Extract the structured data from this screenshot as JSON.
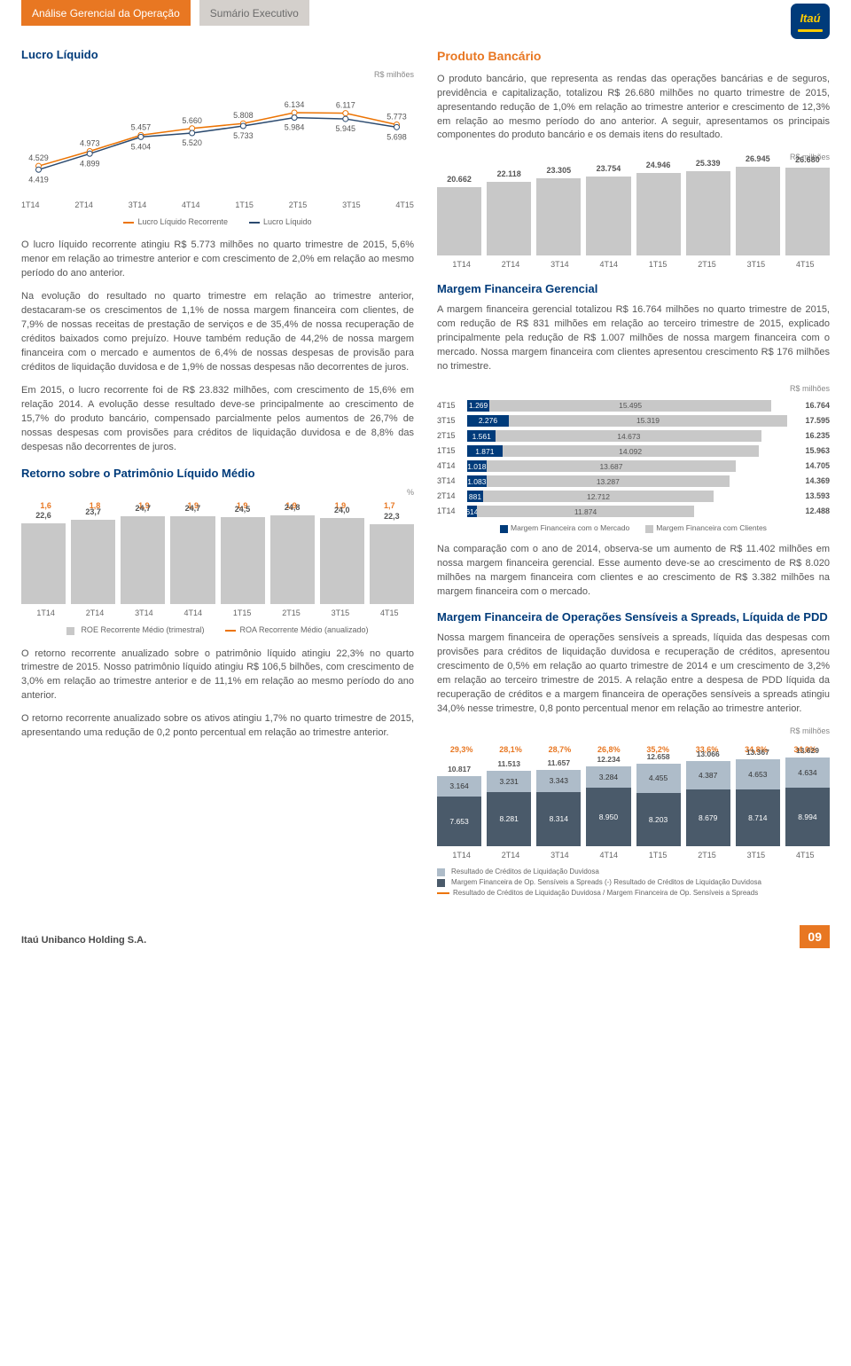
{
  "header": {
    "tag1": "Análise Gerencial da Operação",
    "tag2": "Sumário Executivo",
    "logo_text": "Itaú"
  },
  "colors": {
    "orange": "#e87722",
    "navy": "#003b7a",
    "orange_line": "#ec7404",
    "navy_line": "#2b4a6f",
    "gray_bar": "#c8c8c8",
    "steel_light": "#aebcc9",
    "steel_dark": "#4a5a6a"
  },
  "lucro_liquido": {
    "title": "Lucro Líquido",
    "unit": "R$ milhões",
    "periods": [
      "1T14",
      "2T14",
      "3T14",
      "4T14",
      "1T15",
      "2T15",
      "3T15",
      "4T15"
    ],
    "recorrente": [
      4529,
      4973,
      5457,
      5660,
      5808,
      6134,
      6117,
      5773
    ],
    "recorrente_lbl": [
      "4.529",
      "4.973",
      "5.457",
      "5.660",
      "5.808",
      "6.134",
      "6.117",
      "5.773"
    ],
    "liquido": [
      4419,
      4899,
      5404,
      5520,
      5733,
      5984,
      5945,
      5698
    ],
    "liquido_lbl": [
      "4.419",
      "4.899",
      "5.404",
      "5.520",
      "5.733",
      "5.984",
      "5.945",
      "5.698"
    ],
    "legend1": "Lucro Líquido Recorrente",
    "legend2": "Lucro Líquido",
    "ymin": 4000,
    "ymax": 6400
  },
  "para1": "O lucro líquido recorrente atingiu R$ 5.773 milhões no quarto trimestre de 2015, 5,6% menor em relação ao trimestre anterior e com crescimento de 2,0% em relação ao mesmo período do ano anterior.",
  "para2": "Na evolução do resultado no quarto trimestre em relação ao trimestre anterior, destacaram-se os crescimentos de 1,1% de nossa margem financeira com clientes, de 7,9% de nossas receitas de prestação de serviços e de 35,4% de nossa recuperação de créditos baixados como prejuízo. Houve também redução de 44,2% de nossa margem financeira com o mercado e aumentos de 6,4% de nossas despesas de provisão para créditos de liquidação duvidosa e de 1,9% de nossas despesas não decorrentes de juros.",
  "para3": "Em 2015, o lucro recorrente foi de R$ 23.832 milhões, com crescimento de 15,6% em relação 2014. A evolução desse resultado deve-se principalmente ao crescimento de 15,7% do produto bancário, compensado parcialmente pelos aumentos de 26,7% de nossas despesas com provisões para créditos de liquidação duvidosa e de 8,8% das despesas não decorrentes de juros.",
  "roe": {
    "title": "Retorno sobre o Patrimônio Líquido Médio",
    "unit": "%",
    "periods": [
      "1T14",
      "2T14",
      "3T14",
      "4T14",
      "1T15",
      "2T15",
      "3T15",
      "4T15"
    ],
    "roa": [
      "1,6",
      "1,8",
      "1,9",
      "1,9",
      "1,9",
      "1,9",
      "1,9",
      "1,7"
    ],
    "roe": [
      "22,6",
      "23,7",
      "24,7",
      "24,7",
      "24,5",
      "24,8",
      "24,0",
      "22,3"
    ],
    "roe_h": [
      91,
      95,
      99,
      99,
      98,
      100,
      97,
      90
    ],
    "legend1": "ROE Recorrente Médio (trimestral)",
    "legend2": "ROA Recorrente Médio (anualizado)"
  },
  "para4": "O retorno recorrente anualizado sobre o patrimônio líquido atingiu 22,3% no quarto trimestre de 2015. Nosso patrimônio líquido atingiu R$ 106,5 bilhões, com crescimento de 3,0% em relação ao trimestre anterior e de 11,1% em relação ao mesmo período do ano anterior.",
  "para5": "O retorno recorrente anualizado sobre os ativos atingiu 1,7% no quarto trimestre de 2015, apresentando uma redução de 0,2 ponto percentual em relação ao trimestre anterior.",
  "produto": {
    "title": "Produto Bancário",
    "body": "O produto bancário, que representa as rendas das operações bancárias e de seguros, previdência e capitalização, totalizou R$ 26.680 milhões no quarto trimestre de 2015, apresentando redução de 1,0% em relação ao trimestre anterior e crescimento de 12,3% em relação ao mesmo período do ano anterior. A seguir, apresentamos os principais componentes do produto bancário e os demais itens do resultado.",
    "unit": "R$ milhões",
    "periods": [
      "1T14",
      "2T14",
      "3T14",
      "4T14",
      "1T15",
      "2T15",
      "3T15",
      "4T15"
    ],
    "values_lbl": [
      "20.662",
      "22.118",
      "23.305",
      "23.754",
      "24.946",
      "25.339",
      "26.945",
      "26.680"
    ],
    "heights": [
      77,
      83,
      87,
      89,
      93,
      95,
      100,
      99
    ]
  },
  "margem_fin": {
    "title": "Margem Financeira Gerencial",
    "body": "A margem financeira gerencial totalizou R$ 16.764 milhões no quarto trimestre de 2015, com redução de R$ 831 milhões em relação ao terceiro trimestre de 2015, explicado principalmente pela redução de R$ 1.007 milhões de nossa margem financeira com o mercado. Nossa margem financeira com clientes apresentou crescimento R$ 176 milhões no trimestre.",
    "unit": "R$ milhões",
    "rows": [
      {
        "p": "4T15",
        "mkt": "1.269",
        "cli": "15.495",
        "tot": "16.764",
        "w1": 7,
        "w2": 88
      },
      {
        "p": "3T15",
        "mkt": "2.276",
        "cli": "15.319",
        "tot": "17.595",
        "w1": 13,
        "w2": 87
      },
      {
        "p": "2T15",
        "mkt": "1.561",
        "cli": "14.673",
        "tot": "16.235",
        "w1": 9,
        "w2": 83
      },
      {
        "p": "1T15",
        "mkt": "1.871",
        "cli": "14.092",
        "tot": "15.963",
        "w1": 11,
        "w2": 80
      },
      {
        "p": "4T14",
        "mkt": "1.018",
        "cli": "13.687",
        "tot": "14.705",
        "w1": 6,
        "w2": 78
      },
      {
        "p": "3T14",
        "mkt": "1.083",
        "cli": "13.287",
        "tot": "14.369",
        "w1": 6,
        "w2": 76
      },
      {
        "p": "2T14",
        "mkt": "881",
        "cli": "12.712",
        "tot": "13.593",
        "w1": 5,
        "w2": 72
      },
      {
        "p": "1T14",
        "mkt": "614",
        "cli": "11.874",
        "tot": "12.488",
        "w1": 3,
        "w2": 68
      }
    ],
    "legend1": "Margem Financeira com o Mercado",
    "legend2": "Margem Financeira com Clientes"
  },
  "para_mf": "Na comparação com o ano de 2014, observa-se um aumento de R$ 11.402 milhões em nossa margem financeira gerencial. Esse aumento deve-se ao crescimento de R$ 8.020 milhões na margem financeira com clientes e ao crescimento de R$ 3.382 milhões na margem financeira com o mercado.",
  "spreads": {
    "title": "Margem Financeira de Operações Sensíveis a Spreads, Líquida de PDD",
    "body": "Nossa margem financeira de operações sensíveis a spreads, líquida das despesas com provisões para créditos de liquidação duvidosa e recuperação de créditos, apresentou crescimento de 0,5% em relação ao quarto trimestre de 2014 e um crescimento de 3,2% em relação ao terceiro trimestre de 2015. A relação entre a despesa de PDD líquida da recuperação de créditos e a margem financeira de operações sensíveis a spreads atingiu 34,0% nesse trimestre, 0,8 ponto percentual menor em relação ao trimestre anterior.",
    "unit": "R$ milhões",
    "periods": [
      "1T14",
      "2T14",
      "3T14",
      "4T14",
      "1T15",
      "2T15",
      "3T15",
      "4T15"
    ],
    "pct": [
      "29,3%",
      "28,1%",
      "28,7%",
      "26,8%",
      "35,2%",
      "33,6%",
      "34,8%",
      "34,0%"
    ],
    "top": [
      "10.817",
      "11.513",
      "11.657",
      "12.234",
      "12.658",
      "13.066",
      "13.367",
      "13.629"
    ],
    "upper": [
      "3.164",
      "3.231",
      "3.343",
      "3.284",
      "4.455",
      "4.387",
      "4.653",
      "4.634"
    ],
    "lower": [
      "7.653",
      "8.281",
      "8.314",
      "8.950",
      "8.203",
      "8.679",
      "8.714",
      "8.994"
    ],
    "h_upper": [
      23,
      24,
      25,
      24,
      33,
      32,
      34,
      34
    ],
    "h_lower": [
      56,
      61,
      61,
      66,
      60,
      64,
      64,
      66
    ],
    "leg1": "Resultado de Créditos de Liquidação Duvidosa",
    "leg2": "Margem Financeira de Op. Sensíveis a Spreads (-) Resultado de Créditos de Liquidação Duvidosa",
    "leg3": "Resultado de Créditos de Liquidação Duvidosa / Margem Financeira de Op. Sensíveis a Spreads"
  },
  "footer": {
    "company": "Itaú Unibanco Holding S.A.",
    "page": "09"
  }
}
